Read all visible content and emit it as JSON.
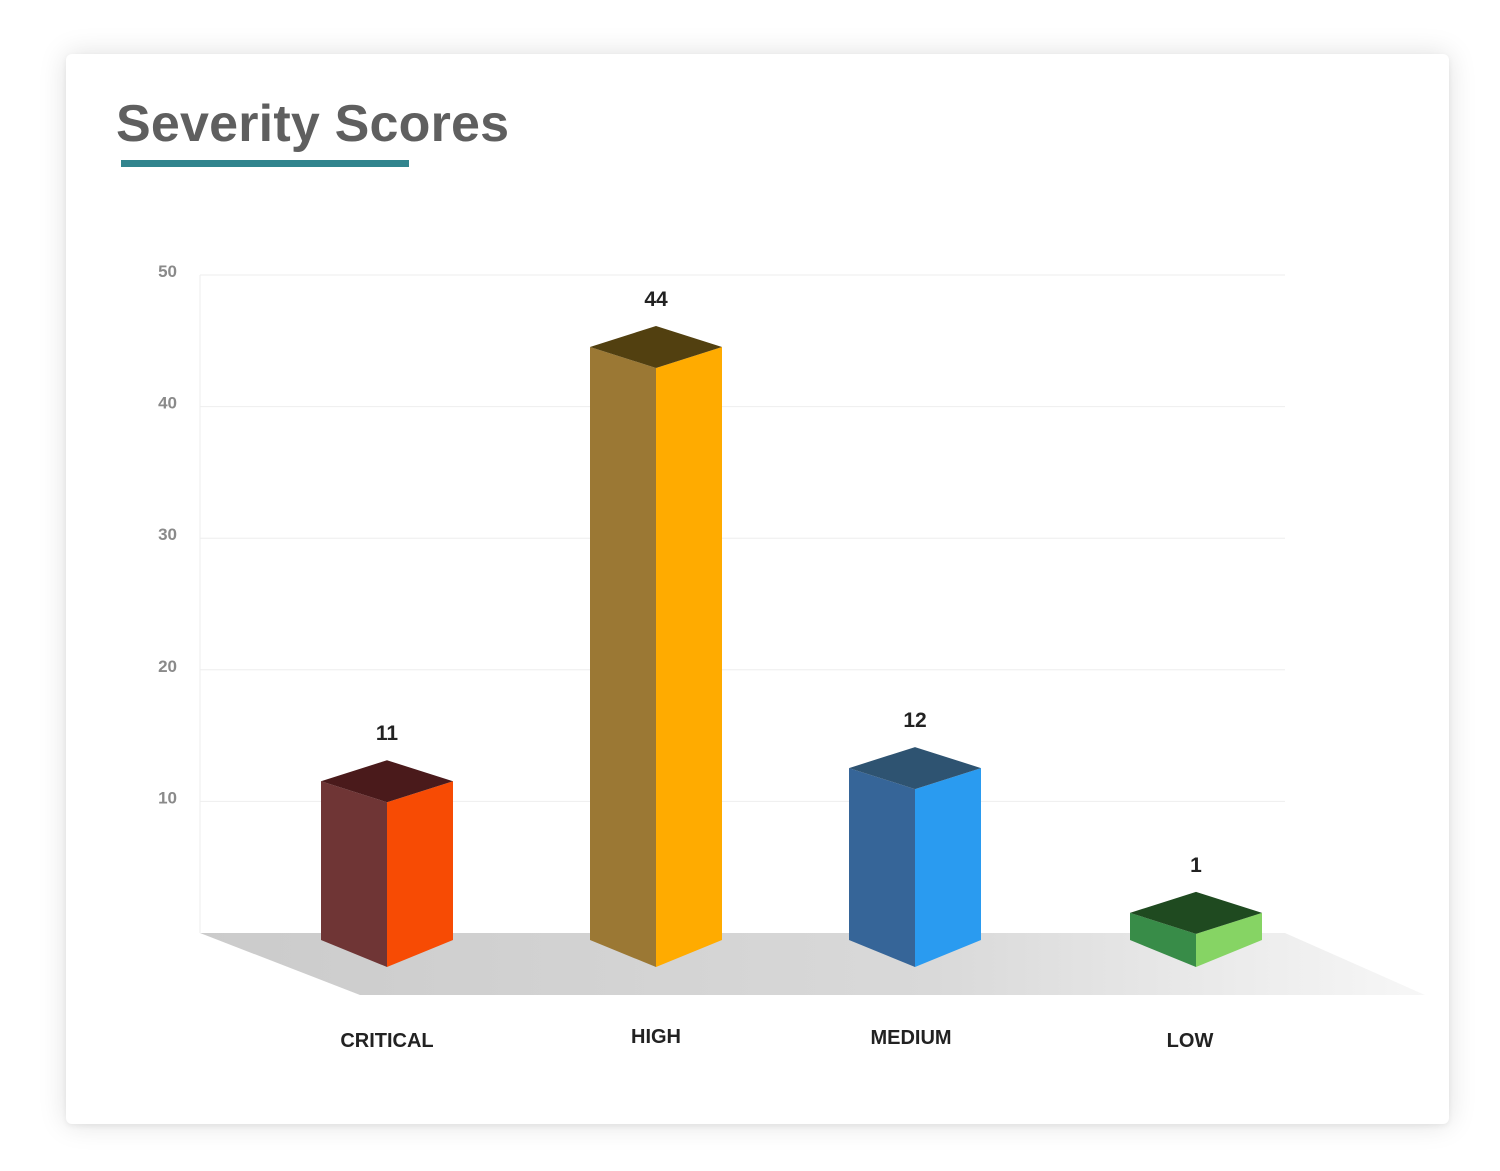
{
  "title": "Severity Scores",
  "colors": {
    "accent": "#31848d",
    "title": "#5f5f5f"
  },
  "chart_data": {
    "type": "bar",
    "style": "3d",
    "title": "Severity Scores",
    "xlabel": "",
    "ylabel": "",
    "ylim": [
      0,
      50
    ],
    "yticks": [
      10,
      20,
      30,
      40,
      50
    ],
    "grid": true,
    "categories": [
      "CRITICAL",
      "HIGH",
      "MEDIUM",
      "LOW"
    ],
    "values": [
      11,
      44,
      12,
      1
    ],
    "bar_colors": [
      {
        "front": "#f74b04",
        "side": "#6f3535",
        "top": "#4a1a1b"
      },
      {
        "front": "#ffab00",
        "side": "#9b7834",
        "top": "#524010"
      },
      {
        "front": "#2a9bf0",
        "side": "#366598",
        "top": "#2e5371"
      },
      {
        "front": "#86d464",
        "side": "#388c48",
        "top": "#1f4a20"
      }
    ]
  }
}
